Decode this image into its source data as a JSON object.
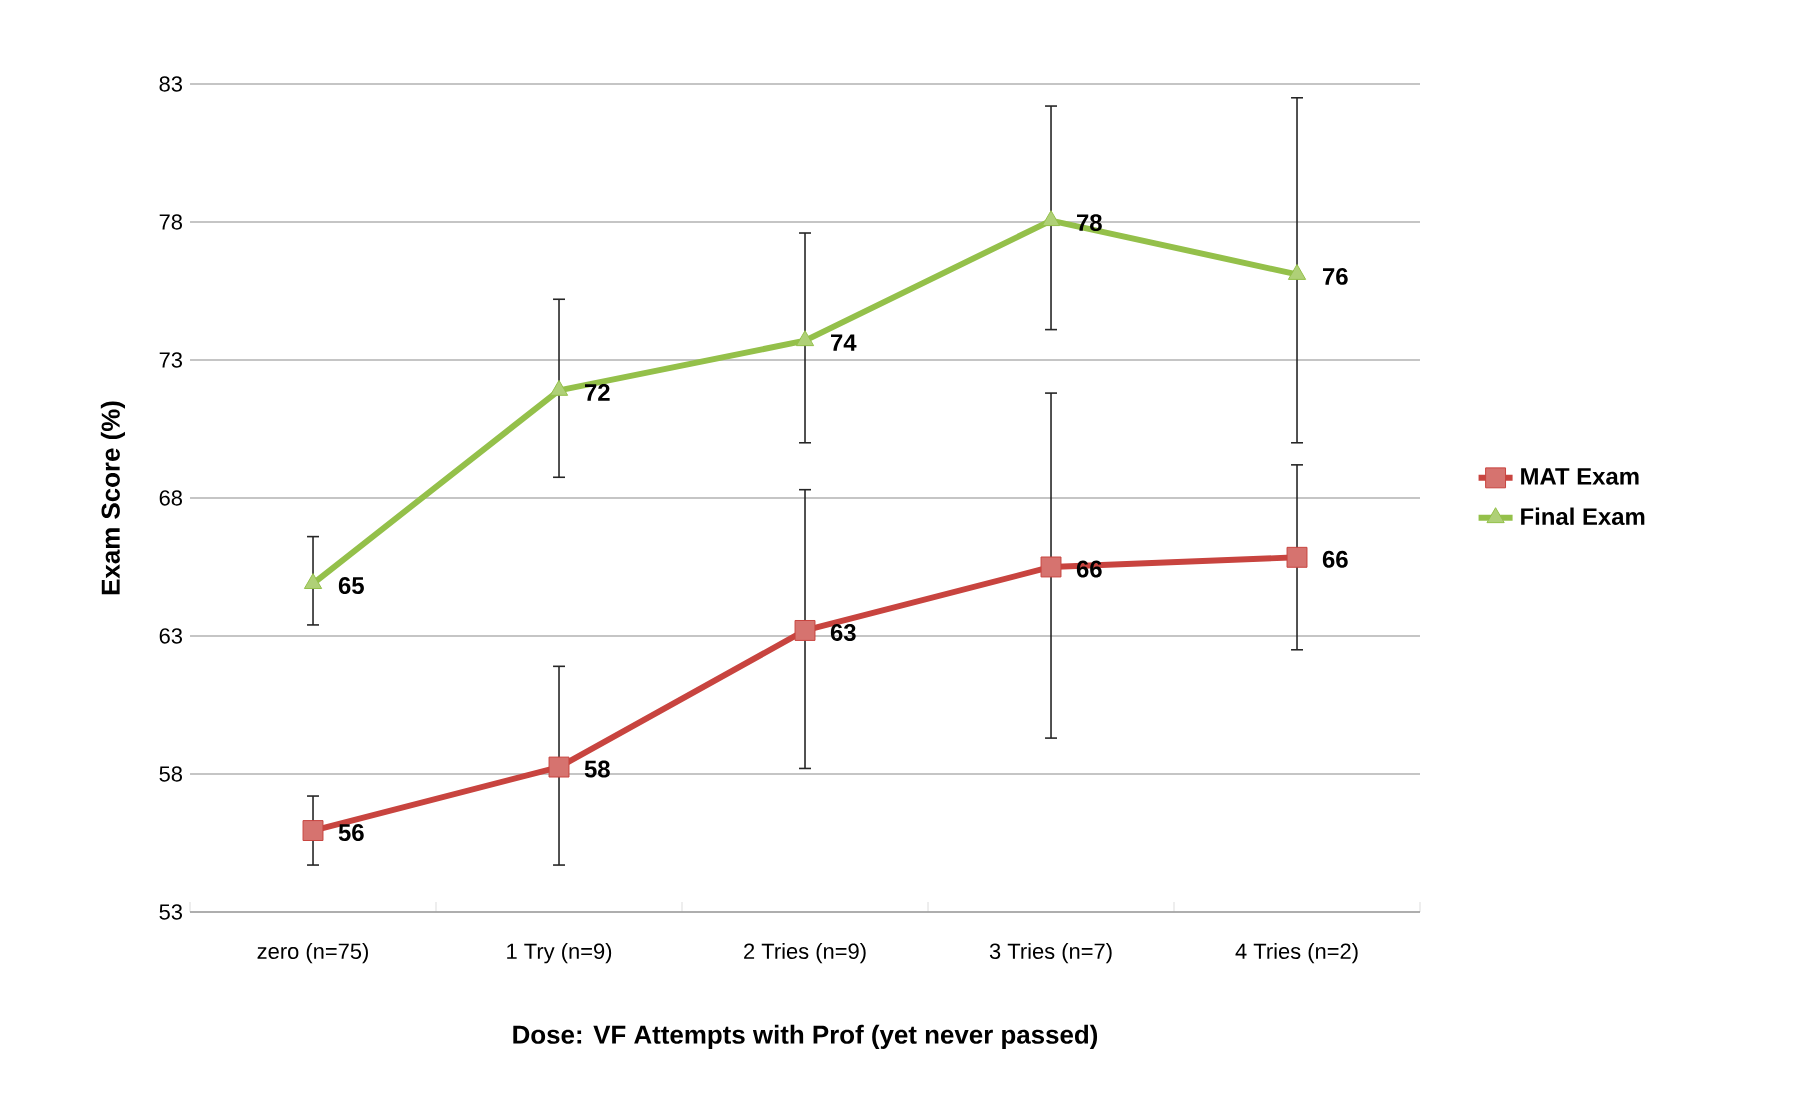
{
  "chart_data": {
    "type": "line",
    "xlabel": "Dose: VF Attempts with Prof (yet never passed)",
    "ylabel": "Exam Score (%)",
    "categories": [
      "zero (n=75)",
      "1 Try (n=9)",
      "2 Tries (n=9)",
      "3 Tries (n=7)",
      "4 Tries (n=2)"
    ],
    "ylim": [
      53,
      83
    ],
    "yticks": [
      53,
      58,
      63,
      68,
      73,
      78,
      83
    ],
    "grid": "y",
    "legend": "right",
    "series": [
      {
        "name": "MAT Exam",
        "color": "#c8443f",
        "marker": "square",
        "values": [
          55.95,
          58.25,
          63.2,
          65.5,
          65.85
        ],
        "errors": [
          [
            54.7,
            57.2
          ],
          [
            54.7,
            61.9
          ],
          [
            58.2,
            68.3
          ],
          [
            59.3,
            71.8
          ],
          [
            62.5,
            69.2
          ]
        ],
        "value_labels": [
          "56",
          "58",
          "63",
          "66",
          "66"
        ]
      },
      {
        "name": "Final Exam",
        "color": "#94c04a",
        "marker": "triangle",
        "values": [
          64.9,
          71.9,
          73.7,
          78.05,
          76.1
        ],
        "errors": [
          [
            63.4,
            66.6
          ],
          [
            68.75,
            75.2
          ],
          [
            70.0,
            77.6
          ],
          [
            74.1,
            82.2
          ],
          [
            70.0,
            82.5
          ]
        ],
        "value_labels": [
          "65",
          "72",
          "74",
          "78",
          "76"
        ]
      }
    ]
  }
}
